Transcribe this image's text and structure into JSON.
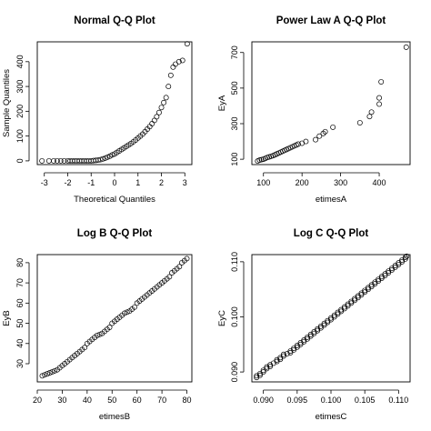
{
  "chart_data": [
    {
      "type": "scatter",
      "title": "Normal Q-Q Plot",
      "xlabel": "Theoretical Quantiles",
      "ylabel": "Sample Quantiles",
      "xlim": [
        -3.3,
        3.3
      ],
      "ylim": [
        -15,
        480
      ],
      "xticks": [
        -3,
        -2,
        -1,
        0,
        1,
        2,
        3
      ],
      "yticks": [
        0,
        100,
        200,
        300,
        400
      ],
      "ytick_rotated": true,
      "grid": false,
      "series": [
        {
          "points": [
            [
              -3.1,
              0
            ],
            [
              -2.8,
              0
            ],
            [
              -2.6,
              0
            ],
            [
              -2.45,
              0
            ],
            [
              -2.3,
              0
            ],
            [
              -2.15,
              0
            ],
            [
              -2.0,
              0
            ],
            [
              -1.9,
              0
            ],
            [
              -1.8,
              0
            ],
            [
              -1.7,
              0
            ],
            [
              -1.6,
              0
            ],
            [
              -1.5,
              0
            ],
            [
              -1.4,
              0
            ],
            [
              -1.3,
              0
            ],
            [
              -1.2,
              0
            ],
            [
              -1.1,
              0
            ],
            [
              -1.0,
              0
            ],
            [
              -0.9,
              1
            ],
            [
              -0.8,
              2
            ],
            [
              -0.7,
              3
            ],
            [
              -0.6,
              5
            ],
            [
              -0.5,
              8
            ],
            [
              -0.4,
              11
            ],
            [
              -0.3,
              15
            ],
            [
              -0.2,
              19
            ],
            [
              -0.1,
              24
            ],
            [
              0.0,
              28
            ],
            [
              0.1,
              34
            ],
            [
              0.2,
              40
            ],
            [
              0.3,
              46
            ],
            [
              0.4,
              52
            ],
            [
              0.5,
              58
            ],
            [
              0.6,
              64
            ],
            [
              0.7,
              70
            ],
            [
              0.8,
              77
            ],
            [
              0.9,
              84
            ],
            [
              1.0,
              92
            ],
            [
              1.1,
              100
            ],
            [
              1.2,
              108
            ],
            [
              1.3,
              118
            ],
            [
              1.4,
              128
            ],
            [
              1.5,
              138
            ],
            [
              1.6,
              150
            ],
            [
              1.7,
              163
            ],
            [
              1.8,
              178
            ],
            [
              1.9,
              195
            ],
            [
              2.0,
              215
            ],
            [
              2.1,
              235
            ],
            [
              2.2,
              255
            ],
            [
              2.3,
              300
            ],
            [
              2.4,
              345
            ],
            [
              2.5,
              378
            ],
            [
              2.6,
              390
            ],
            [
              2.75,
              400
            ],
            [
              2.9,
              405
            ],
            [
              3.1,
              472
            ]
          ]
        }
      ]
    },
    {
      "type": "scatter",
      "title": "Power Law A Q-Q Plot",
      "xlabel": "etimesA",
      "ylabel": "EyA",
      "xlim": [
        70,
        480
      ],
      "ylim": [
        70,
        760
      ],
      "xticks": [
        100,
        200,
        300,
        400
      ],
      "yticks": [
        100,
        300,
        500,
        700
      ],
      "ytick_rotated": true,
      "grid": false,
      "series": [
        {
          "points": [
            [
              85,
              90
            ],
            [
              90,
              95
            ],
            [
              95,
              98
            ],
            [
              100,
              100
            ],
            [
              105,
              105
            ],
            [
              110,
              110
            ],
            [
              115,
              113
            ],
            [
              120,
              117
            ],
            [
              125,
              120
            ],
            [
              130,
              125
            ],
            [
              135,
              130
            ],
            [
              140,
              135
            ],
            [
              145,
              140
            ],
            [
              150,
              145
            ],
            [
              155,
              150
            ],
            [
              160,
              155
            ],
            [
              165,
              160
            ],
            [
              170,
              165
            ],
            [
              175,
              170
            ],
            [
              180,
              175
            ],
            [
              185,
              180
            ],
            [
              190,
              185
            ],
            [
              200,
              190
            ],
            [
              210,
              200
            ],
            [
              235,
              210
            ],
            [
              245,
              230
            ],
            [
              255,
              245
            ],
            [
              260,
              255
            ],
            [
              280,
              280
            ],
            [
              350,
              305
            ],
            [
              375,
              340
            ],
            [
              380,
              365
            ],
            [
              400,
              410
            ],
            [
              400,
              445
            ],
            [
              405,
              535
            ],
            [
              470,
              730
            ]
          ]
        }
      ]
    },
    {
      "type": "scatter",
      "title": "Log B Q-Q Plot",
      "xlabel": "etimesB",
      "ylabel": "EyB",
      "xlim": [
        20,
        82
      ],
      "ylim": [
        21,
        84
      ],
      "xticks": [
        20,
        30,
        40,
        50,
        60,
        70,
        80
      ],
      "yticks": [
        30,
        40,
        50,
        60,
        70,
        80
      ],
      "ytick_rotated": true,
      "grid": false,
      "series": [
        {
          "points": [
            [
              22,
              24
            ],
            [
              23,
              24.5
            ],
            [
              24,
              25
            ],
            [
              25,
              25.5
            ],
            [
              26,
              26
            ],
            [
              27,
              26.5
            ],
            [
              28,
              27
            ],
            [
              29,
              28
            ],
            [
              30,
              29
            ],
            [
              31,
              30
            ],
            [
              32,
              31
            ],
            [
              33,
              32
            ],
            [
              34,
              33
            ],
            [
              35,
              34
            ],
            [
              36,
              35
            ],
            [
              37,
              36
            ],
            [
              38,
              37
            ],
            [
              39,
              38
            ],
            [
              40,
              40
            ],
            [
              41,
              41
            ],
            [
              42,
              42
            ],
            [
              43,
              43
            ],
            [
              44,
              44
            ],
            [
              45,
              44.5
            ],
            [
              46,
              45
            ],
            [
              47,
              46
            ],
            [
              48,
              47
            ],
            [
              49,
              48
            ],
            [
              50,
              50
            ],
            [
              51,
              51
            ],
            [
              52,
              52
            ],
            [
              53,
              53
            ],
            [
              54,
              54
            ],
            [
              55,
              55
            ],
            [
              56,
              55.5
            ],
            [
              57,
              56
            ],
            [
              58,
              57
            ],
            [
              59,
              58
            ],
            [
              60,
              60
            ],
            [
              61,
              61
            ],
            [
              62,
              62
            ],
            [
              63,
              63
            ],
            [
              64,
              64
            ],
            [
              65,
              65
            ],
            [
              66,
              66
            ],
            [
              67,
              67
            ],
            [
              68,
              68
            ],
            [
              69,
              69
            ],
            [
              70,
              70
            ],
            [
              71,
              71
            ],
            [
              72,
              72
            ],
            [
              73,
              73
            ],
            [
              74,
              75
            ],
            [
              75,
              76
            ],
            [
              76,
              77
            ],
            [
              77,
              78
            ],
            [
              78,
              80
            ],
            [
              79,
              81
            ],
            [
              80,
              82
            ]
          ]
        }
      ]
    },
    {
      "type": "scatter",
      "title": "Log C Q-Q Plot",
      "xlabel": "etimesC",
      "ylabel": "EyC",
      "xlim": [
        0.0883,
        0.1117
      ],
      "ylim": [
        0.0882,
        0.1113
      ],
      "xticks": [
        "0.090",
        "0.095",
        "0.100",
        "0.105",
        "0.110"
      ],
      "yticks": [
        "0.090",
        "0.100",
        "0.110"
      ],
      "ytick_rotated": true,
      "grid": false,
      "series": [
        {
          "points": [
            [
              0.089,
              0.089
            ],
            [
              0.089,
              0.0893
            ],
            [
              0.0895,
              0.0894
            ],
            [
              0.0895,
              0.0897
            ],
            [
              0.09,
              0.09
            ],
            [
              0.09,
              0.0903
            ],
            [
              0.0905,
              0.0906
            ],
            [
              0.0905,
              0.0909
            ],
            [
              0.091,
              0.091
            ],
            [
              0.091,
              0.0913
            ],
            [
              0.0915,
              0.0916
            ],
            [
              0.092,
              0.0919
            ],
            [
              0.092,
              0.0922
            ],
            [
              0.0925,
              0.0923
            ],
            [
              0.0925,
              0.0926
            ],
            [
              0.093,
              0.0929
            ],
            [
              0.093,
              0.0932
            ],
            [
              0.0935,
              0.0933
            ],
            [
              0.094,
              0.0935
            ],
            [
              0.094,
              0.0938
            ],
            [
              0.0945,
              0.094
            ],
            [
              0.0945,
              0.0943
            ],
            [
              0.095,
              0.0945
            ],
            [
              0.095,
              0.0948
            ],
            [
              0.0955,
              0.095
            ],
            [
              0.0955,
              0.0953
            ],
            [
              0.096,
              0.0955
            ],
            [
              0.096,
              0.0958
            ],
            [
              0.0965,
              0.096
            ],
            [
              0.0965,
              0.0963
            ],
            [
              0.097,
              0.0965
            ],
            [
              0.097,
              0.0968
            ],
            [
              0.0975,
              0.097
            ],
            [
              0.0975,
              0.0973
            ],
            [
              0.098,
              0.0975
            ],
            [
              0.098,
              0.0978
            ],
            [
              0.0985,
              0.098
            ],
            [
              0.0985,
              0.0983
            ],
            [
              0.099,
              0.0985
            ],
            [
              0.099,
              0.0988
            ],
            [
              0.0995,
              0.099
            ],
            [
              0.0995,
              0.0993
            ],
            [
              0.1,
              0.0995
            ],
            [
              0.1,
              0.0998
            ],
            [
              0.1005,
              0.1
            ],
            [
              0.1005,
              0.1003
            ],
            [
              0.101,
              0.1005
            ],
            [
              0.101,
              0.1008
            ],
            [
              0.1015,
              0.101
            ],
            [
              0.1015,
              0.1013
            ],
            [
              0.102,
              0.1015
            ],
            [
              0.102,
              0.1018
            ],
            [
              0.1025,
              0.102
            ],
            [
              0.1025,
              0.1023
            ],
            [
              0.103,
              0.1025
            ],
            [
              0.103,
              0.1028
            ],
            [
              0.1035,
              0.103
            ],
            [
              0.1035,
              0.1033
            ],
            [
              0.104,
              0.1035
            ],
            [
              0.104,
              0.1038
            ],
            [
              0.1045,
              0.104
            ],
            [
              0.1045,
              0.1043
            ],
            [
              0.105,
              0.1045
            ],
            [
              0.105,
              0.1048
            ],
            [
              0.1055,
              0.105
            ],
            [
              0.1055,
              0.1053
            ],
            [
              0.106,
              0.1055
            ],
            [
              0.106,
              0.1058
            ],
            [
              0.1065,
              0.106
            ],
            [
              0.1065,
              0.1063
            ],
            [
              0.107,
              0.1065
            ],
            [
              0.107,
              0.1068
            ],
            [
              0.1075,
              0.107
            ],
            [
              0.1075,
              0.1073
            ],
            [
              0.108,
              0.1075
            ],
            [
              0.108,
              0.1078
            ],
            [
              0.1085,
              0.108
            ],
            [
              0.1085,
              0.1083
            ],
            [
              0.109,
              0.1085
            ],
            [
              0.109,
              0.1088
            ],
            [
              0.1095,
              0.109
            ],
            [
              0.1095,
              0.1093
            ],
            [
              0.11,
              0.1095
            ],
            [
              0.11,
              0.1098
            ],
            [
              0.1105,
              0.11
            ],
            [
              0.1105,
              0.1103
            ],
            [
              0.111,
              0.1105
            ],
            [
              0.111,
              0.1108
            ],
            [
              0.1112,
              0.111
            ]
          ]
        }
      ]
    }
  ]
}
